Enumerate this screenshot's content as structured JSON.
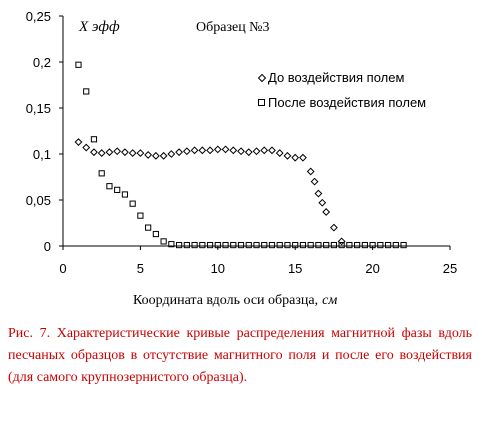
{
  "chart_data": {
    "type": "scatter",
    "title": "Образец №3",
    "ylabel_inside": "X эфф",
    "xlabel": "Координата вдоль оси образца,",
    "xlabel_unit": "см",
    "xlim": [
      0,
      25
    ],
    "ylim": [
      0,
      0.25
    ],
    "x_ticks": [
      "0",
      "5",
      "10",
      "15",
      "20",
      "25"
    ],
    "y_ticks": [
      "0",
      "0,05",
      "0,1",
      "0,15",
      "0,2",
      "0,25"
    ],
    "legend_placement": "right",
    "grid": false,
    "series": [
      {
        "name": "До воздействия полем",
        "marker": "diamond",
        "x": [
          1,
          1.5,
          2,
          2.5,
          3,
          3.5,
          4,
          4.5,
          5,
          5.5,
          6,
          6.5,
          7,
          7.5,
          8,
          8.5,
          9,
          9.5,
          10,
          10.5,
          11,
          11.5,
          12,
          12.5,
          13,
          13.5,
          14,
          14.5,
          15,
          15.5,
          16,
          16.25,
          16.5,
          16.75,
          17,
          17.5,
          18
        ],
        "y": [
          0.113,
          0.107,
          0.102,
          0.101,
          0.102,
          0.103,
          0.102,
          0.101,
          0.101,
          0.099,
          0.098,
          0.098,
          0.1,
          0.102,
          0.103,
          0.104,
          0.104,
          0.104,
          0.105,
          0.105,
          0.104,
          0.103,
          0.102,
          0.103,
          0.104,
          0.104,
          0.101,
          0.098,
          0.096,
          0.096,
          0.081,
          0.07,
          0.057,
          0.047,
          0.037,
          0.02,
          0.005
        ]
      },
      {
        "name": "После воздействия полем",
        "marker": "square",
        "x": [
          1,
          1.5,
          2,
          2.5,
          3,
          3.5,
          4,
          4.5,
          5,
          5.5,
          6,
          6.5,
          7,
          7.5,
          8,
          8.5,
          9,
          9.5,
          10,
          10.5,
          11,
          11.5,
          12,
          12.5,
          13,
          13.5,
          14,
          14.5,
          15,
          15.5,
          16,
          16.5,
          17,
          17.5,
          18,
          18.5,
          19,
          19.5,
          20,
          20.5,
          21,
          21.5,
          22
        ],
        "y": [
          0.197,
          0.168,
          0.116,
          0.079,
          0.065,
          0.061,
          0.056,
          0.046,
          0.033,
          0.02,
          0.013,
          0.005,
          0.002,
          0.001,
          0.001,
          0.001,
          0.001,
          0.001,
          0.001,
          0.001,
          0.001,
          0.001,
          0.001,
          0.001,
          0.001,
          0.001,
          0.001,
          0.001,
          0.001,
          0.001,
          0.001,
          0.001,
          0.001,
          0.001,
          0.001,
          0.001,
          0.001,
          0.001,
          0.001,
          0.001,
          0.001,
          0.001,
          0.001
        ]
      }
    ]
  },
  "caption": "Рис. 7. Характеристические кривые распределения магнитной фазы вдоль песчаных образцов в отсутствие магнитного поля и после его воздействия (для самого крупнозернистого образца)."
}
